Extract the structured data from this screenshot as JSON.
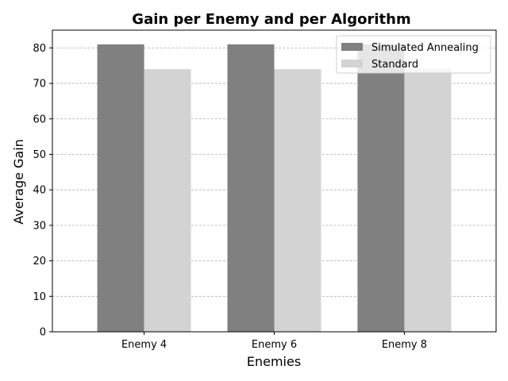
{
  "chart_data": {
    "type": "bar",
    "title": "Gain per Enemy and per Algorithm",
    "xlabel": "Enemies",
    "ylabel": "Average Gain",
    "categories": [
      "Enemy 4",
      "Enemy 6",
      "Enemy 8"
    ],
    "series": [
      {
        "name": "Simulated Annealing",
        "values": [
          81,
          81,
          81
        ],
        "color": "#808080"
      },
      {
        "name": "Standard",
        "values": [
          74,
          74,
          74
        ],
        "color": "#d3d3d3"
      }
    ],
    "ylim": [
      0,
      85
    ],
    "yticks": [
      0,
      10,
      20,
      30,
      40,
      50,
      60,
      70,
      80
    ],
    "grid": "y-dashed",
    "legend": "top-right"
  }
}
